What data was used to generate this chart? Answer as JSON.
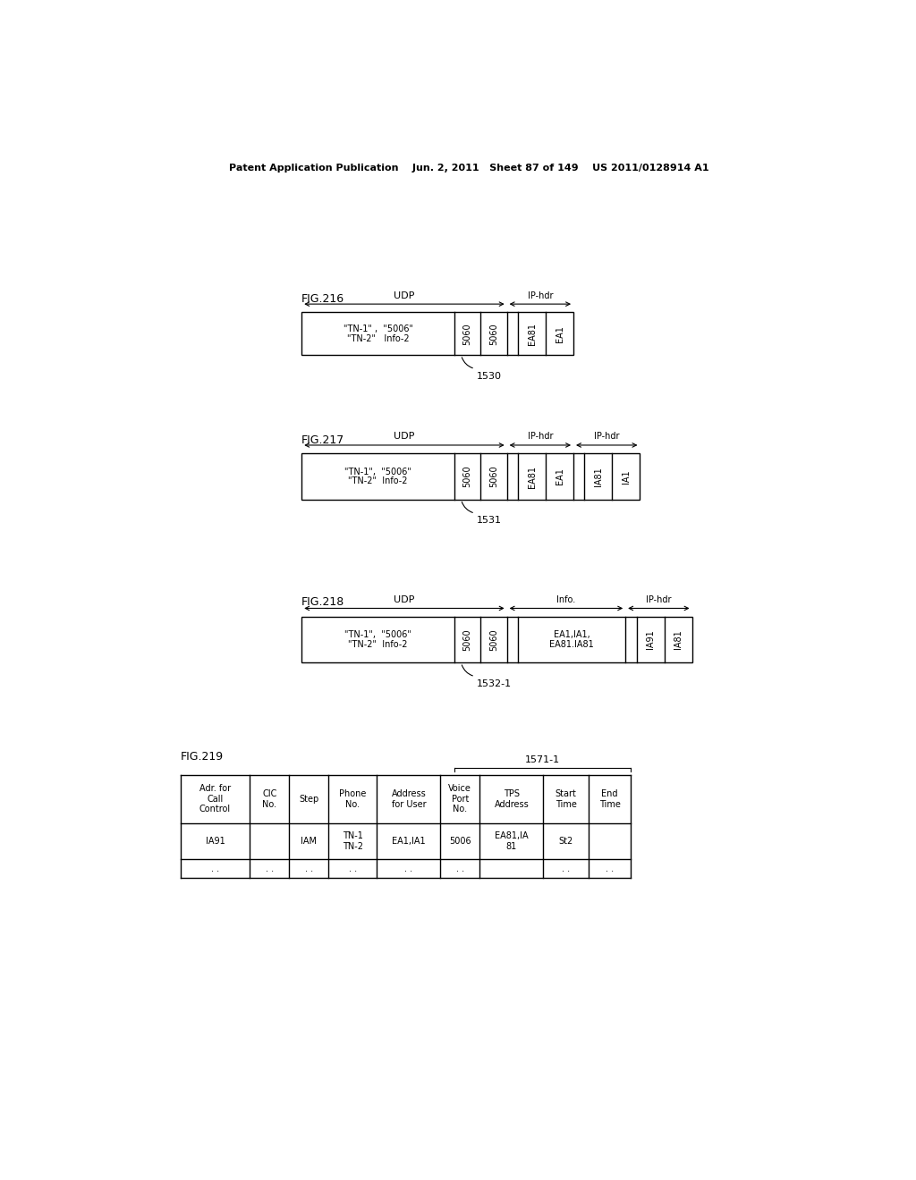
{
  "bg_color": "#ffffff",
  "header_text": "Patent Application Publication    Jun. 2, 2011   Sheet 87 of 149    US 2011/0128914 A1",
  "fig216": {
    "label": "FIG.216",
    "udp_label": "UDP",
    "ip_hdr_label": "IP-hdr",
    "main_text_line1": "\"TN-1\" ,  \"5006\"",
    "main_text_line2": "\"TN-2\"   Info-2",
    "port_cells": [
      "5060",
      "5060"
    ],
    "ip_cells": [
      "EA81",
      "EA1"
    ],
    "ref_label": "1530"
  },
  "fig217": {
    "label": "FIG.217",
    "udp_label": "UDP",
    "ip_hdr1_label": "IP-hdr",
    "ip_hdr2_label": "IP-hdr",
    "main_text_line1": "\"TN-1\",  \"5006\"",
    "main_text_line2": "\"TN-2\"  Info-2",
    "port_cells": [
      "5060",
      "5060"
    ],
    "ip1_cells": [
      "EA81",
      "EA1"
    ],
    "ip2_cells": [
      "IA81",
      "IA1"
    ],
    "ref_label": "1531"
  },
  "fig218": {
    "label": "FIG.218",
    "udp_label": "UDP",
    "info_label": "Info.",
    "ip_hdr_label": "IP-hdr",
    "main_text_line1": "\"TN-1\",  \"5006\"",
    "main_text_line2": "\"TN-2\"  Info-2",
    "port_cells": [
      "5060",
      "5060"
    ],
    "info_line1": "EA1,IA1,",
    "info_line2": "EA81.IA81",
    "ip_cells": [
      "IA91",
      "IA81"
    ],
    "ref_label": "1532-1"
  },
  "fig219": {
    "label": "FIG.219",
    "ref_label": "1571-1",
    "headers": [
      "Adr. for\nCall\nControl",
      "CIC\nNo.",
      "Step",
      "Phone\nNo.",
      "Address\nfor User",
      "Voice\nPort\nNo.",
      "TPS\nAddress",
      "Start\nTime",
      "End\nTime"
    ],
    "row1": [
      "IA91",
      "",
      "IAM",
      "TN-1\nTN-2",
      "EA1,IA1",
      "5006",
      "EA81,IA\n81",
      "St2",
      ""
    ],
    "row2": [
      ". .",
      ". .",
      ". .",
      ". .",
      ". .",
      ". .",
      "",
      ". .",
      ". ."
    ]
  }
}
